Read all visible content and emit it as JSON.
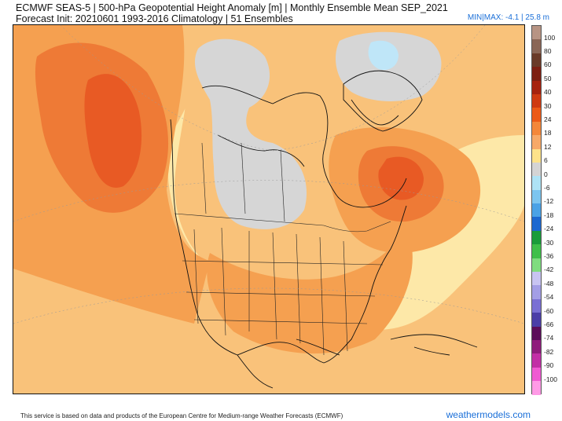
{
  "header": {
    "title": "ECMWF SEAS-5 | 500-hPa Geopotential Height Anomaly [m] | Monthly Ensemble Mean SEP_2021",
    "subtitle": "Forecast Init: 20210601    1993-2016 Climatology | 51 Ensembles",
    "minmax": "MIN|MAX: -4.1 | 25.8 m"
  },
  "colorbar": {
    "labels": [
      "100",
      "80",
      "60",
      "50",
      "40",
      "30",
      "24",
      "18",
      "12",
      "6",
      "0",
      "-6",
      "-12",
      "-18",
      "-24",
      "-30",
      "-36",
      "-42",
      "-48",
      "-54",
      "-60",
      "-66",
      "-74",
      "-82",
      "-90",
      "-100"
    ],
    "colors": [
      "#b79484",
      "#8a6656",
      "#6a3a28",
      "#7d1f12",
      "#a6220f",
      "#cf3a12",
      "#ec5a18",
      "#f4873a",
      "#f7a968",
      "#fde28a",
      "#d4d4d4",
      "#aee3f5",
      "#7cc5ef",
      "#4aa2e6",
      "#1d68d0",
      "#1a9c3a",
      "#3fbf4a",
      "#7fdc7f",
      "#c8c4f2",
      "#a39ee6",
      "#7a70d4",
      "#4b3ea8",
      "#5c0d5a",
      "#8f1c7c",
      "#c22fa6",
      "#f05ad2",
      "#ff9ae6"
    ]
  },
  "map": {
    "colors": {
      "pale_yellow": "#fde8a8",
      "light_orange": "#f9c27a",
      "orange": "#f5a050",
      "deep_orange": "#ee7a36",
      "red_orange": "#e85a24",
      "gray": "#d6d6d6",
      "light_blue": "#bfe6f8"
    }
  },
  "footer": {
    "text": "This service is based on data and products of the European Centre for Medium-range Weather Forecasts (ECMWF)",
    "brand": "weathermodels.com"
  }
}
